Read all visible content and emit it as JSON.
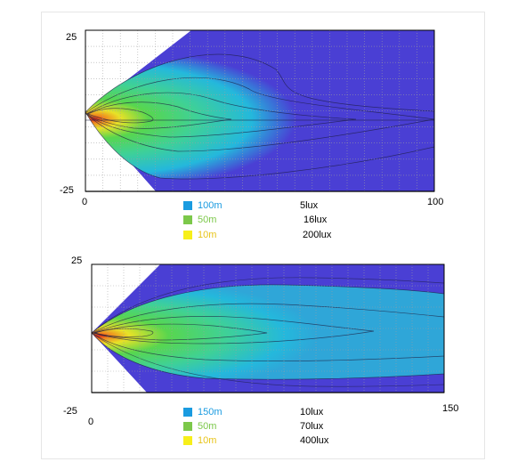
{
  "chart_data": [
    {
      "type": "heatmap",
      "title": "",
      "xlabel": "",
      "ylabel": "",
      "xlim": [
        0,
        100
      ],
      "ylim": [
        -25,
        25
      ],
      "x_tick_labels": [
        "0",
        "100"
      ],
      "y_tick_labels": [
        "25",
        "-25"
      ],
      "grid": true,
      "colormap": [
        "#4a3fd4",
        "#24b8dc",
        "#3fd196",
        "#58d64e",
        "#e8e227",
        "#f0861e",
        "#e0261b"
      ],
      "legend": [
        {
          "distance": "100m",
          "illuminance": "5lux",
          "color": "#1a9be0"
        },
        {
          "distance": "50m",
          "illuminance": "16lux",
          "color": "#7cc84a"
        },
        {
          "distance": "10m",
          "illuminance": "200lux",
          "color": "#f7ef1a"
        }
      ]
    },
    {
      "type": "heatmap",
      "title": "",
      "xlabel": "",
      "ylabel": "",
      "xlim": [
        0,
        150
      ],
      "ylim": [
        -25,
        25
      ],
      "x_tick_labels": [
        "0",
        "150"
      ],
      "y_tick_labels": [
        "25",
        "-25"
      ],
      "grid": true,
      "colormap": [
        "#4a3fd4",
        "#24b8dc",
        "#3fd196",
        "#58d64e",
        "#e8e227",
        "#f0861e",
        "#e0261b"
      ],
      "legend": [
        {
          "distance": "150m",
          "illuminance": "10lux",
          "color": "#1a9be0"
        },
        {
          "distance": "50m",
          "illuminance": "70lux",
          "color": "#7cc84a"
        },
        {
          "distance": "10m",
          "illuminance": "400lux",
          "color": "#f7ef1a"
        }
      ]
    }
  ]
}
